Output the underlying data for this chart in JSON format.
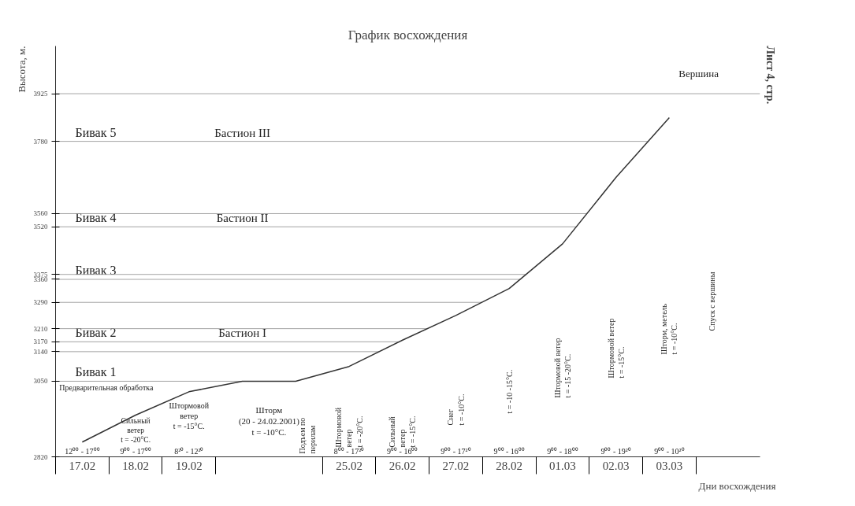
{
  "chart_data": {
    "type": "line",
    "title": "График восхождения",
    "xlabel": "Дни восхождения",
    "ylabel": "Высота, м.",
    "categories": [
      "17.02",
      "18.02",
      "19.02",
      null,
      null,
      "25.02",
      "26.02",
      "27.02",
      "28.02",
      "01.03",
      "02.03",
      "03.03"
    ],
    "series": [
      {
        "color": "#333333",
        "values": [
          2865,
          2947,
          3018,
          3050,
          3050,
          3095,
          3175,
          3250,
          3332,
          3468,
          3670,
          3852
        ]
      }
    ],
    "ylim": [
      2820,
      4070
    ],
    "yticks": [
      2820,
      3050,
      3140,
      3170,
      3210,
      3290,
      3360,
      3375,
      3520,
      3560,
      3780,
      3925
    ],
    "ref_lines": [
      {
        "axis": "y",
        "value": 3050,
        "label": "Бивак 1"
      },
      {
        "axis": "y",
        "value": 3140
      },
      {
        "axis": "y",
        "value": 3170,
        "label": "Бивак 2"
      },
      {
        "axis": "y",
        "value": 3210
      },
      {
        "axis": "y",
        "value": 3290
      },
      {
        "axis": "y",
        "value": 3360,
        "label": "Бивак 3"
      },
      {
        "axis": "y",
        "value": 3375
      },
      {
        "axis": "y",
        "value": 3520,
        "label": "Бивак 4"
      },
      {
        "axis": "y",
        "value": 3560
      },
      {
        "axis": "y",
        "value": 3780,
        "label": "Бивак 5"
      },
      {
        "axis": "y",
        "value": 3925
      }
    ],
    "annotations": [
      {
        "text": "Бастион I",
        "y": 3170
      },
      {
        "text": "Бастион II",
        "y": 3520
      },
      {
        "text": "Бастион III",
        "y": 3780
      },
      "Вершина",
      "Предварительная обработка",
      "Сильный\nветер\nt = -20°C.",
      "Штормовой\nветер\nt = -15°C.",
      "Шторм\n(20 - 24.02.2001)\nt = -10°C.",
      "Подъем по\nперилам",
      "Штормовой\nветер\nt = -20°C.",
      "Сильный\nветер\nt = -15°C.",
      "Снег\nt = -10°C.",
      "t = -10 -15°C.",
      "Штормовой ветер\nt = -15 -20°C.",
      "Штормовой ветер\nt = -15°C.",
      "Шторм, метель\nt = -10°C.",
      "Спуск с вершины",
      "12⁰⁰ - 17⁰⁰",
      "9⁰⁰ - 17⁰⁰",
      "8²⁰ - 12²⁰",
      "8⁰⁰ - 17²⁰",
      "9⁰⁰ - 16⁰⁰",
      "9⁰⁰ - 17²⁰",
      "9⁰⁰ - 16⁰⁰",
      "9⁰⁰ - 18⁰⁰",
      "9⁰⁰ - 19²⁰",
      "9⁰⁰ - 10²⁰",
      "Лист 4, стр."
    ]
  }
}
